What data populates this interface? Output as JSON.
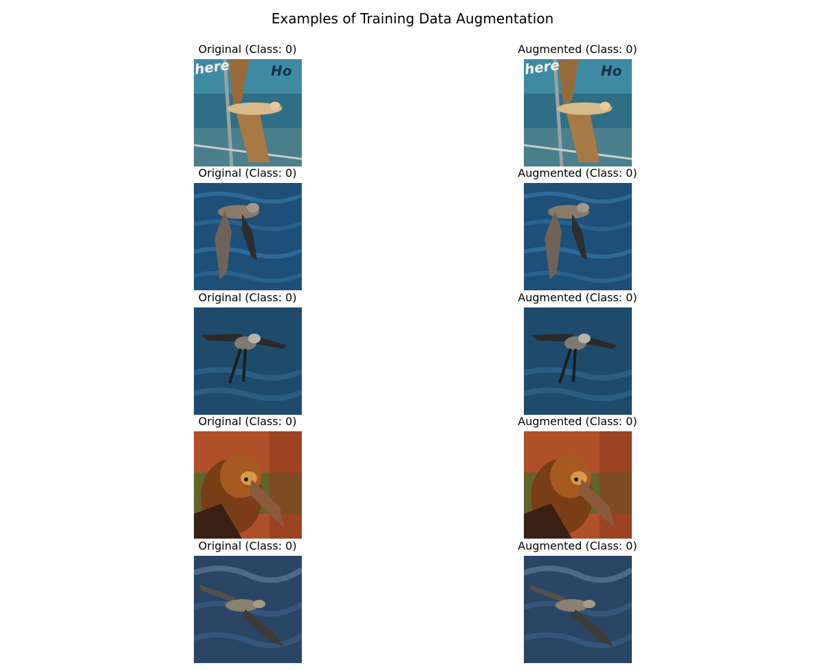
{
  "figure": {
    "title": "Examples of Training Data Augmentation"
  },
  "rows": [
    {
      "original": {
        "title": "Original (Class: 0)",
        "image": "albatross-flying-past-blue-glass-sign"
      },
      "augmented": {
        "title": "Augmented (Class: 0)",
        "image": "albatross-flying-past-blue-glass-sign"
      }
    },
    {
      "original": {
        "title": "Original (Class: 0)",
        "image": "albatross-skimming-blue-ocean-waves"
      },
      "augmented": {
        "title": "Augmented (Class: 0)",
        "image": "albatross-skimming-blue-ocean-waves"
      }
    },
    {
      "original": {
        "title": "Original (Class: 0)",
        "image": "albatross-wings-spread-over-ocean"
      },
      "augmented": {
        "title": "Augmented (Class: 0)",
        "image": "albatross-wings-spread-over-ocean"
      }
    },
    {
      "original": {
        "title": "Original (Class: 0)",
        "image": "albatross-head-portrait-warm-light"
      },
      "augmented": {
        "title": "Augmented (Class: 0)",
        "image": "albatross-head-portrait-warm-light"
      }
    },
    {
      "original": {
        "title": "Original (Class: 0)",
        "image": "albatross-gliding-over-dark-sea"
      },
      "augmented": {
        "title": "Augmented (Class: 0)",
        "image": "albatross-gliding-over-dark-sea"
      }
    }
  ]
}
